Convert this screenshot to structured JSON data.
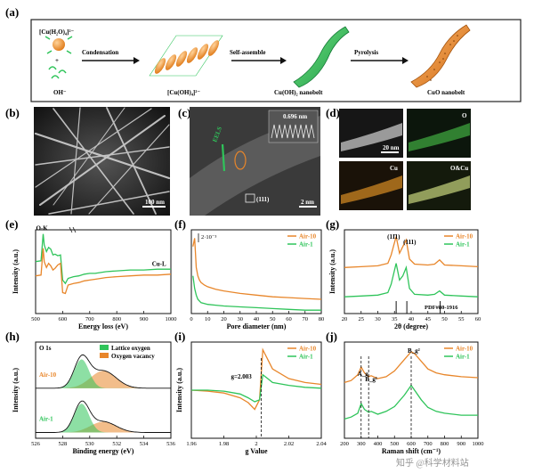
{
  "figure": {
    "panels": {
      "a": {
        "label": "(a)",
        "formula_top": "[Cu(H₂O)₄]²⁻",
        "plus": "+",
        "oh_label": "OH⁻",
        "step1": "Condensation",
        "step2": "Self-assemble",
        "step3": "Pyrolysis",
        "product1": "[Cu(OH)₄]²⁻",
        "product2": "Cu(OH)₂ nanobelt",
        "product3": "CuO nanobelt"
      },
      "b": {
        "label": "(b)",
        "scale": "100 nm"
      },
      "c": {
        "label": "(c)",
        "eels": "EELS",
        "inset_value": "0.696 nm",
        "plane": "(111)",
        "scale": "2 nm"
      },
      "d": {
        "label": "(d)",
        "scale": "20 nm",
        "maps": [
          "O",
          "Cu",
          "O&Cu"
        ]
      }
    },
    "watermark": "知乎 @科学材料站"
  },
  "colors": {
    "orange": "#e8862a",
    "green": "#2fc45a"
  },
  "chart_data": [
    {
      "panel": "(e)",
      "type": "line",
      "xlabel": "Energy loss (eV)",
      "ylabel": "Intensity (a.u.)",
      "xlim": [
        500,
        1000
      ],
      "xticks": [
        500,
        600,
        700,
        800,
        900,
        1000
      ],
      "annotations": [
        "O-K",
        "Cu-L"
      ],
      "series": [
        {
          "name": "green",
          "color": "#2fc45a",
          "x": [
            500,
            520,
            528,
            532,
            540,
            548,
            556,
            564,
            572,
            582,
            592,
            600,
            610,
            620,
            640,
            660,
            680,
            700,
            720,
            760,
            800,
            850,
            900,
            950,
            1000
          ],
          "y": [
            0.62,
            0.63,
            0.95,
            0.82,
            0.74,
            0.79,
            0.77,
            0.7,
            0.71,
            0.69,
            0.7,
            0.4,
            0.36,
            0.42,
            0.44,
            0.45,
            0.47,
            0.48,
            0.48,
            0.5,
            0.51,
            0.52,
            0.52,
            0.53,
            0.53
          ]
        },
        {
          "name": "orange",
          "color": "#e8862a",
          "x": [
            500,
            520,
            528,
            532,
            540,
            548,
            556,
            564,
            572,
            582,
            592,
            600,
            610,
            620,
            640,
            660,
            680,
            700,
            720,
            760,
            800,
            850,
            900,
            950,
            1000
          ],
          "y": [
            0.45,
            0.46,
            0.78,
            0.62,
            0.55,
            0.6,
            0.57,
            0.52,
            0.54,
            0.58,
            0.6,
            0.25,
            0.24,
            0.34,
            0.36,
            0.37,
            0.39,
            0.4,
            0.41,
            0.43,
            0.44,
            0.45,
            0.46,
            0.46,
            0.47
          ]
        }
      ]
    },
    {
      "panel": "(f)",
      "type": "line",
      "xlabel": "Pore diameter (nm)",
      "ylabel": "",
      "xlim": [
        0,
        80
      ],
      "xticks": [
        0,
        10,
        20,
        30,
        40,
        50,
        60,
        70,
        80
      ],
      "scale_note": "2·10⁻³",
      "series": [
        {
          "name": "Air-10",
          "color": "#e8862a",
          "x": [
            1,
            2,
            3,
            4,
            5,
            6,
            8,
            10,
            15,
            20,
            30,
            40,
            50,
            60,
            70,
            80
          ],
          "y": [
            0.8,
            0.9,
            0.55,
            0.45,
            0.4,
            0.37,
            0.34,
            0.32,
            0.29,
            0.27,
            0.24,
            0.22,
            0.2,
            0.19,
            0.18,
            0.17
          ]
        },
        {
          "name": "Air-1",
          "color": "#2fc45a",
          "x": [
            1,
            2,
            3,
            4,
            5,
            6,
            8,
            10,
            15,
            20,
            30,
            40,
            50,
            60,
            70,
            80
          ],
          "y": [
            0.45,
            0.3,
            0.22,
            0.17,
            0.15,
            0.13,
            0.12,
            0.11,
            0.1,
            0.09,
            0.08,
            0.07,
            0.06,
            0.05,
            0.04,
            0.04
          ]
        }
      ]
    },
    {
      "panel": "(g)",
      "type": "line",
      "xlabel": "2θ (degree)",
      "ylabel": "Intensity (a.u.)",
      "xlim": [
        20,
        60
      ],
      "xticks": [
        20,
        25,
        30,
        35,
        40,
        45,
        50,
        55,
        60
      ],
      "annotations": [
        "(11̄1)",
        "(111)",
        "PDF#80-1916"
      ],
      "series": [
        {
          "name": "Air-10",
          "color": "#e8862a",
          "x": [
            20,
            25,
            30,
            33,
            34,
            35.5,
            36.5,
            37.5,
            38.5,
            39.5,
            41,
            45,
            47,
            48.5,
            50,
            55,
            60
          ],
          "y": [
            0.55,
            0.56,
            0.57,
            0.6,
            0.7,
            0.92,
            0.72,
            0.8,
            0.88,
            0.65,
            0.59,
            0.58,
            0.59,
            0.64,
            0.58,
            0.57,
            0.56
          ]
        },
        {
          "name": "Air-1",
          "color": "#2fc45a",
          "x": [
            20,
            25,
            30,
            33,
            34,
            35.5,
            36.5,
            37.5,
            38.5,
            39.5,
            41,
            45,
            47,
            48.5,
            50,
            55,
            60
          ],
          "y": [
            0.2,
            0.21,
            0.22,
            0.25,
            0.35,
            0.6,
            0.4,
            0.45,
            0.55,
            0.3,
            0.23,
            0.22,
            0.23,
            0.27,
            0.22,
            0.21,
            0.2
          ]
        }
      ]
    },
    {
      "panel": "(h)",
      "type": "area",
      "xlabel": "Binding energy (eV)",
      "ylabel": "Intensity (a.u.)",
      "xlim": [
        526,
        536
      ],
      "xticks": [
        526,
        528,
        530,
        532,
        534,
        536
      ],
      "title": "O 1s",
      "legend": [
        "Lattice oxygen",
        "Oxygen vacancy"
      ],
      "series": [
        {
          "name": "Air-10",
          "lattice": {
            "center": 529.4,
            "height": 0.75
          },
          "vacancy": {
            "center": 531.0,
            "height": 0.45
          }
        },
        {
          "name": "Air-1",
          "lattice": {
            "center": 529.4,
            "height": 0.75
          },
          "vacancy": {
            "center": 531.0,
            "height": 0.28
          }
        }
      ]
    },
    {
      "panel": "(i)",
      "type": "line",
      "xlabel": "g Value",
      "ylabel": "Intensity (a.u.)",
      "xlim": [
        1.96,
        2.04
      ],
      "xticks": [
        1.96,
        1.98,
        2.0,
        2.02,
        2.04
      ],
      "annotation": "g=2.003",
      "series": [
        {
          "name": "Air-10",
          "color": "#e8862a",
          "x": [
            1.96,
            1.97,
            1.98,
            1.99,
            1.995,
            1.999,
            2.002,
            2.004,
            2.007,
            2.01,
            2.02,
            2.03,
            2.04
          ],
          "y": [
            0.5,
            0.49,
            0.47,
            0.42,
            0.37,
            0.3,
            0.4,
            0.92,
            0.82,
            0.72,
            0.62,
            0.58,
            0.56
          ]
        },
        {
          "name": "Air-1",
          "color": "#2fc45a",
          "x": [
            1.96,
            1.97,
            1.98,
            1.99,
            1.995,
            1.999,
            2.002,
            2.004,
            2.007,
            2.01,
            2.02,
            2.03,
            2.04
          ],
          "y": [
            0.5,
            0.5,
            0.49,
            0.46,
            0.42,
            0.38,
            0.4,
            0.66,
            0.62,
            0.58,
            0.55,
            0.53,
            0.52
          ]
        }
      ]
    },
    {
      "panel": "(j)",
      "type": "line",
      "xlabel": "Raman shift (cm⁻¹)",
      "ylabel": "",
      "xlim": [
        200,
        1000
      ],
      "xticks": [
        200,
        300,
        400,
        500,
        600,
        700,
        800,
        900,
        1000
      ],
      "annotations": [
        "A_g",
        "B_g¹",
        "B_g²"
      ],
      "series": [
        {
          "name": "Air-10",
          "color": "#e8862a",
          "x": [
            200,
            240,
            280,
            300,
            320,
            345,
            360,
            400,
            450,
            500,
            560,
            600,
            620,
            660,
            700,
            750,
            800,
            900,
            1000
          ],
          "y": [
            0.58,
            0.6,
            0.66,
            0.74,
            0.68,
            0.64,
            0.65,
            0.62,
            0.64,
            0.7,
            0.82,
            0.9,
            0.88,
            0.8,
            0.72,
            0.68,
            0.66,
            0.64,
            0.63
          ]
        },
        {
          "name": "Air-1",
          "color": "#2fc45a",
          "x": [
            200,
            240,
            280,
            300,
            320,
            345,
            360,
            400,
            450,
            500,
            560,
            600,
            620,
            660,
            700,
            750,
            800,
            900,
            1000
          ],
          "y": [
            0.2,
            0.22,
            0.26,
            0.36,
            0.3,
            0.27,
            0.28,
            0.25,
            0.28,
            0.33,
            0.45,
            0.55,
            0.5,
            0.4,
            0.32,
            0.28,
            0.26,
            0.24,
            0.24
          ]
        }
      ]
    }
  ]
}
